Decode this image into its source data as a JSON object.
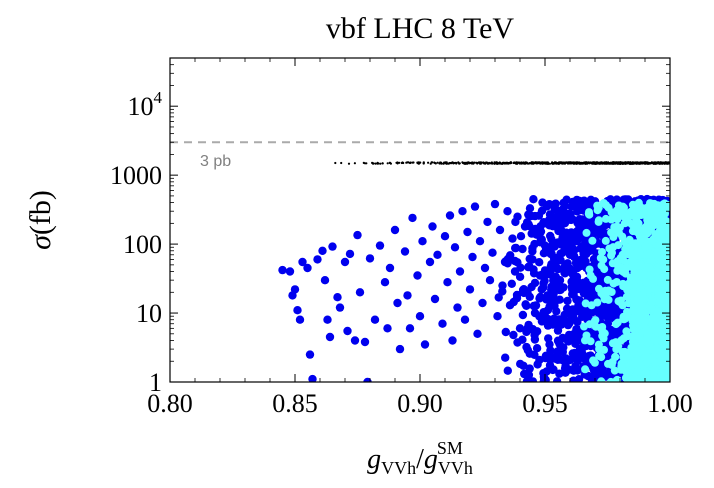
{
  "chart_data": {
    "type": "scatter",
    "title": "vbf LHC 8 TeV",
    "xlabel": {
      "main": "g",
      "main_sub": "VVh",
      "den": "g",
      "den_sub": "VVh",
      "den_sup": "SM"
    },
    "ylabel": {
      "symbol": "σ",
      "unit": "(fb)"
    },
    "xlim": [
      0.8,
      1.0
    ],
    "ylim": [
      1,
      50000
    ],
    "yscale": "log",
    "x_ticks": [
      "0.80",
      "0.85",
      "0.90",
      "0.95",
      "1.00"
    ],
    "y_ticks": [
      {
        "value": 1,
        "label": "1"
      },
      {
        "value": 10,
        "label": "10"
      },
      {
        "value": 100,
        "label": "100"
      },
      {
        "value": 1000,
        "label": "1000"
      },
      {
        "value": 10000,
        "label": "10",
        "exponent": "4"
      }
    ],
    "reference_line": {
      "y": 3000,
      "label": "3 pb",
      "color": "#aaaaaa",
      "style": "dashed"
    },
    "grid": false,
    "legend": "none",
    "series": [
      {
        "color": "#000000",
        "marker": "small-dot",
        "description_points": "x from 0.849 to 1.000 with y ≈ 1500",
        "x_range": [
          0.849,
          1.0
        ],
        "y_center": 1500,
        "density": "increasing toward x = 1"
      },
      {
        "color": "#0000ee",
        "marker": "circle",
        "points": [
          [
            0.845,
            42
          ],
          [
            0.848,
            40
          ],
          [
            0.849,
            18
          ],
          [
            0.85,
            22
          ],
          [
            0.851,
            11
          ],
          [
            0.852,
            8
          ],
          [
            0.853,
            55
          ],
          [
            0.855,
            45
          ],
          [
            0.856,
            2.5
          ],
          [
            0.857,
            1.1
          ],
          [
            0.859,
            60
          ],
          [
            0.861,
            80
          ],
          [
            0.862,
            30
          ],
          [
            0.863,
            8
          ],
          [
            0.864,
            4.5
          ],
          [
            0.865,
            92
          ],
          [
            0.867,
            17
          ],
          [
            0.868,
            12
          ],
          [
            0.87,
            55
          ],
          [
            0.871,
            5.5
          ],
          [
            0.872,
            72
          ],
          [
            0.874,
            4
          ],
          [
            0.875,
            135
          ],
          [
            0.876,
            20
          ],
          [
            0.878,
            3.8
          ],
          [
            0.879,
            1.0
          ],
          [
            0.88,
            62
          ],
          [
            0.882,
            8
          ],
          [
            0.884,
            95
          ],
          [
            0.886,
            28
          ],
          [
            0.887,
            6
          ],
          [
            0.888,
            45
          ],
          [
            0.89,
            160
          ],
          [
            0.891,
            14
          ],
          [
            0.892,
            3
          ],
          [
            0.894,
            78
          ],
          [
            0.895,
            18
          ],
          [
            0.896,
            6
          ],
          [
            0.897,
            240
          ],
          [
            0.899,
            35
          ],
          [
            0.9,
            9
          ],
          [
            0.901,
            110
          ],
          [
            0.902,
            3.5
          ],
          [
            0.904,
            55
          ],
          [
            0.905,
            180
          ],
          [
            0.906,
            16
          ],
          [
            0.907,
            70
          ],
          [
            0.909,
            7
          ],
          [
            0.91,
            130
          ],
          [
            0.911,
            28
          ],
          [
            0.912,
            260
          ],
          [
            0.913,
            4
          ],
          [
            0.914,
            90
          ],
          [
            0.915,
            12
          ],
          [
            0.916,
            40
          ],
          [
            0.917,
            300
          ],
          [
            0.918,
            8
          ],
          [
            0.919,
            150
          ],
          [
            0.92,
            22
          ],
          [
            0.921,
            65
          ],
          [
            0.922,
            350
          ],
          [
            0.923,
            5
          ],
          [
            0.924,
            110
          ],
          [
            0.925,
            14
          ],
          [
            0.926,
            45
          ],
          [
            0.927,
            210
          ],
          [
            0.928,
            30
          ],
          [
            0.929,
            75
          ],
          [
            0.93,
            380
          ],
          [
            0.931,
            9
          ],
          [
            0.932,
            160
          ],
          [
            0.933,
            25
          ],
          [
            0.934,
            55
          ],
          [
            0.935,
            300
          ],
          [
            0.936,
            13
          ],
          [
            0.937,
            120
          ],
          [
            0.938,
            40
          ],
          [
            0.939,
            250
          ],
          [
            0.94,
            6
          ],
          [
            0.941,
            85
          ],
          [
            0.942,
            180
          ],
          [
            0.943,
            20
          ],
          [
            0.944,
            330
          ],
          [
            0.945,
            60
          ],
          [
            0.946,
            10
          ],
          [
            0.947,
            140
          ],
          [
            0.948,
            35
          ],
          [
            0.949,
            400
          ],
          [
            0.95,
            95
          ],
          [
            0.951,
            18
          ],
          [
            0.952,
            270
          ],
          [
            0.953,
            50
          ],
          [
            0.954,
            7
          ],
          [
            0.955,
            200
          ],
          [
            0.956,
            30
          ],
          [
            0.957,
            120
          ],
          [
            0.958,
            360
          ],
          [
            0.959,
            15
          ],
          [
            0.96,
            70
          ],
          [
            0.961,
            230
          ],
          [
            0.962,
            1.5
          ],
          [
            0.963,
            45
          ],
          [
            0.964,
            310
          ],
          [
            0.965,
            25
          ],
          [
            0.966,
            100
          ],
          [
            0.967,
            8
          ],
          [
            0.968,
            170
          ],
          [
            0.969,
            380
          ],
          [
            0.97,
            55
          ],
          [
            0.971,
            12
          ],
          [
            0.972,
            260
          ],
          [
            0.973,
            35
          ],
          [
            0.974,
            140
          ],
          [
            0.975,
            420
          ],
          [
            0.976,
            20
          ],
          [
            0.977,
            80
          ],
          [
            0.978,
            300
          ],
          [
            0.979,
            5
          ],
          [
            0.98,
            190
          ],
          [
            0.981,
            45
          ],
          [
            0.982,
            400
          ],
          [
            0.983,
            110
          ],
          [
            0.984,
            28
          ],
          [
            0.985,
            330
          ],
          [
            0.986,
            65
          ],
          [
            0.987,
            3
          ],
          [
            0.988,
            240
          ],
          [
            0.989,
            150
          ],
          [
            0.99,
            420
          ],
          [
            0.991,
            40
          ],
          [
            0.992,
            90
          ],
          [
            0.993,
            350
          ],
          [
            0.994,
            18
          ],
          [
            0.995,
            210
          ],
          [
            0.996,
            60
          ],
          [
            0.997,
            430
          ],
          [
            0.998,
            130
          ],
          [
            0.999,
            380
          ],
          [
            1.0,
            250
          ]
        ],
        "density": "dense cloud concentrated in x 0.93–1.00"
      },
      {
        "color": "#66ffff",
        "marker": "circle",
        "x_range": [
          0.96,
          1.0
        ],
        "y_range": [
          1,
          400
        ],
        "density": "dense, concentrated near x = 0.99–1.00"
      }
    ]
  }
}
